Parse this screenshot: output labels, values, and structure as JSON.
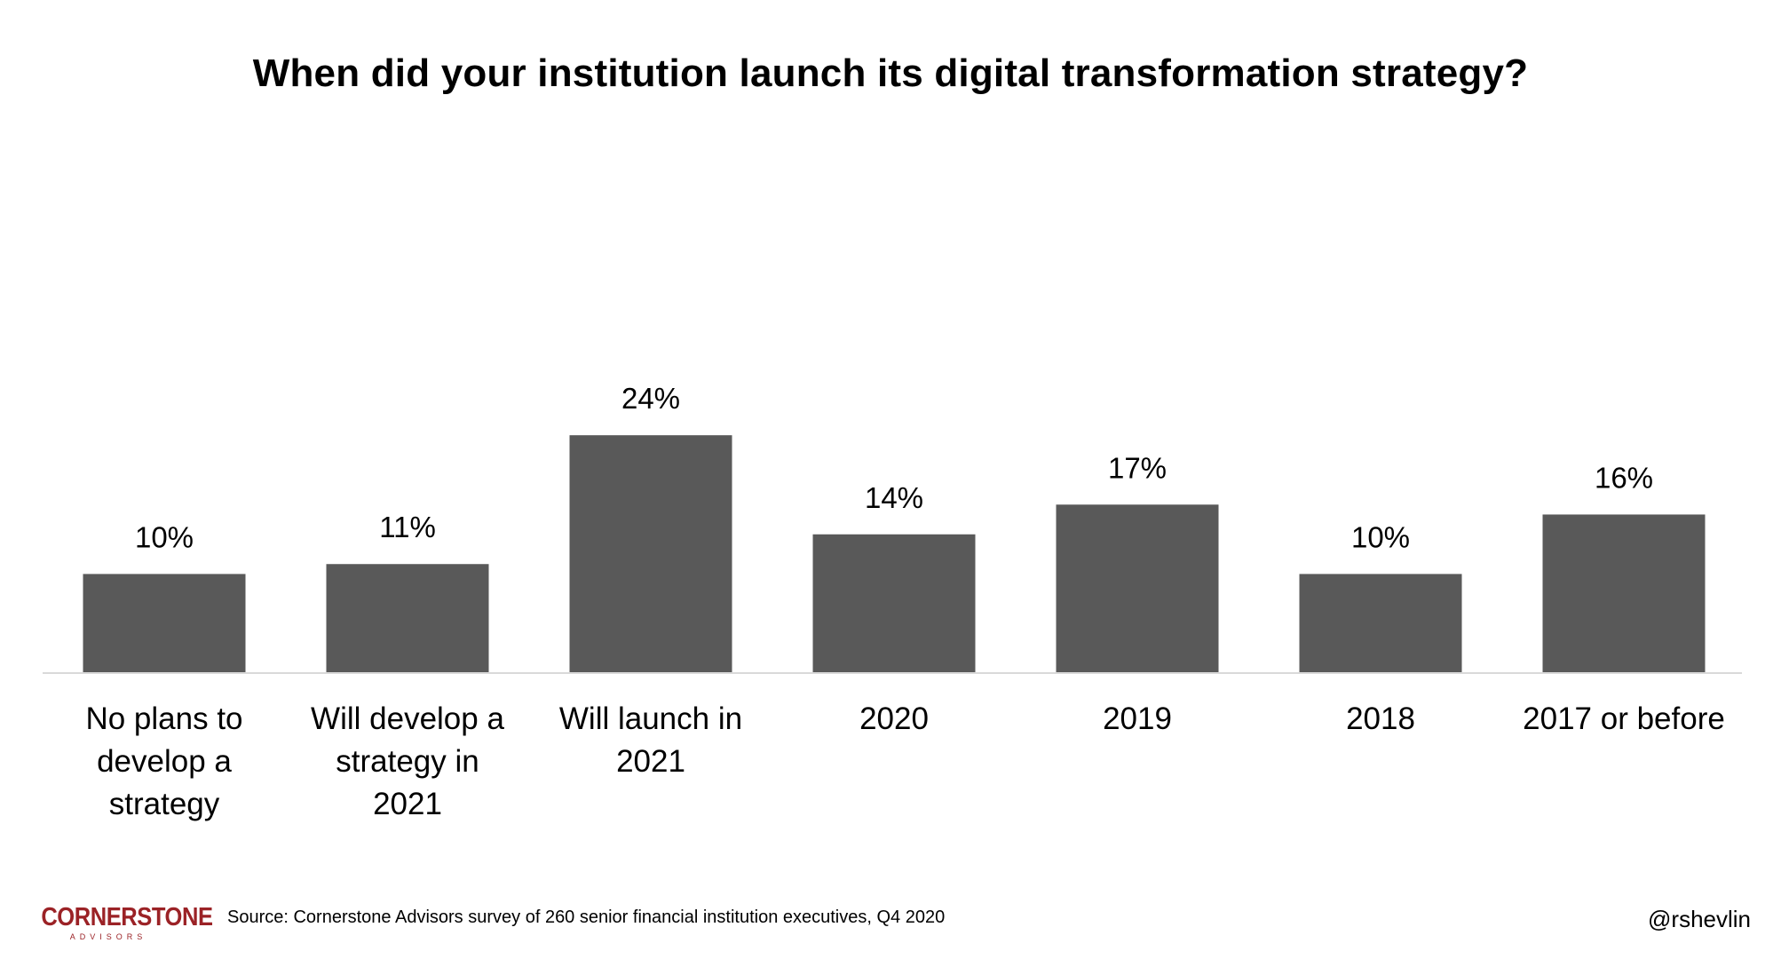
{
  "colors": {
    "bar": "#595959",
    "axis": "#d9d9d9",
    "text": "#000000",
    "brand": "#9b2226",
    "background": "#ffffff"
  },
  "chart_data": {
    "type": "bar",
    "title": "When did your institution launch its digital transformation strategy?",
    "categories": [
      "No plans to develop a strategy",
      "Will develop a strategy in 2021",
      "Will launch in 2021",
      "2020",
      "2019",
      "2018",
      "2017 or before"
    ],
    "values": [
      10,
      11,
      24,
      14,
      17,
      10,
      16
    ],
    "data_labels": [
      "10%",
      "11%",
      "24%",
      "14%",
      "17%",
      "10%",
      "16%"
    ],
    "xlabel": "",
    "ylabel": "",
    "ylim": [
      0,
      50
    ],
    "grid": false,
    "legend": "none"
  },
  "footer": {
    "logo": {
      "main": "CORNERSTONE",
      "sub": "ADVISORS"
    },
    "source": "Source: Cornerstone Advisors survey of 260 senior financial institution executives, Q4 2020",
    "handle": "@rshevlin"
  }
}
